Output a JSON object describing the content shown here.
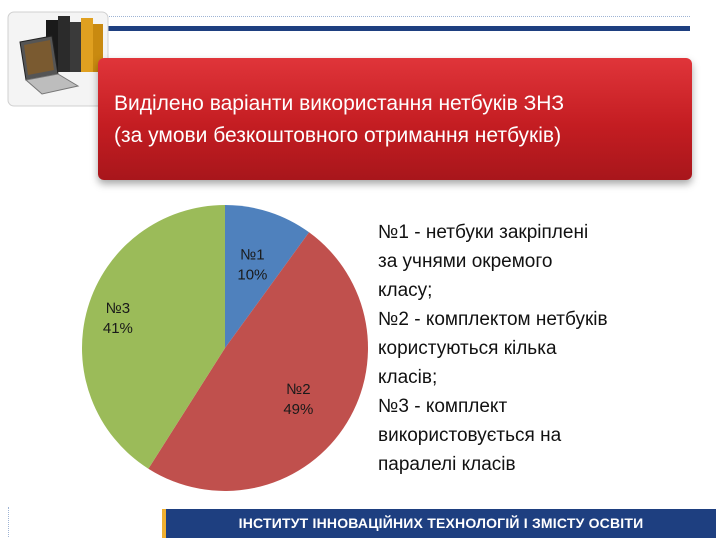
{
  "header": {
    "title_line1": "Виділено варіанти використання нетбуків ЗНЗ",
    "title_line2": "(за умови безкоштовного отримання нетбуків)"
  },
  "chart_data": {
    "type": "pie",
    "categories": [
      "№1",
      "№2",
      "№3"
    ],
    "values": [
      10,
      49,
      41
    ],
    "data_labels": [
      "10%",
      "49%",
      "41%"
    ],
    "colors": [
      "#4f81bd",
      "#c0504d",
      "#9bbb59"
    ]
  },
  "legend_text": "№1 - нетбуки закріплені\nза учнями окремого\nкласу;\n№2 - комплектом нетбуків\nкористуються кілька\nкласів;\n№3 - комплект\nвикористовується на\nпаралелі класів",
  "footer": {
    "text": "ІНСТИТУТ ІННОВАЦІЙНИХ ТЕХНОЛОГІЙ І ЗМІСТУ ОСВІТИ"
  },
  "icons": {
    "logo": "books-laptop-icon"
  }
}
